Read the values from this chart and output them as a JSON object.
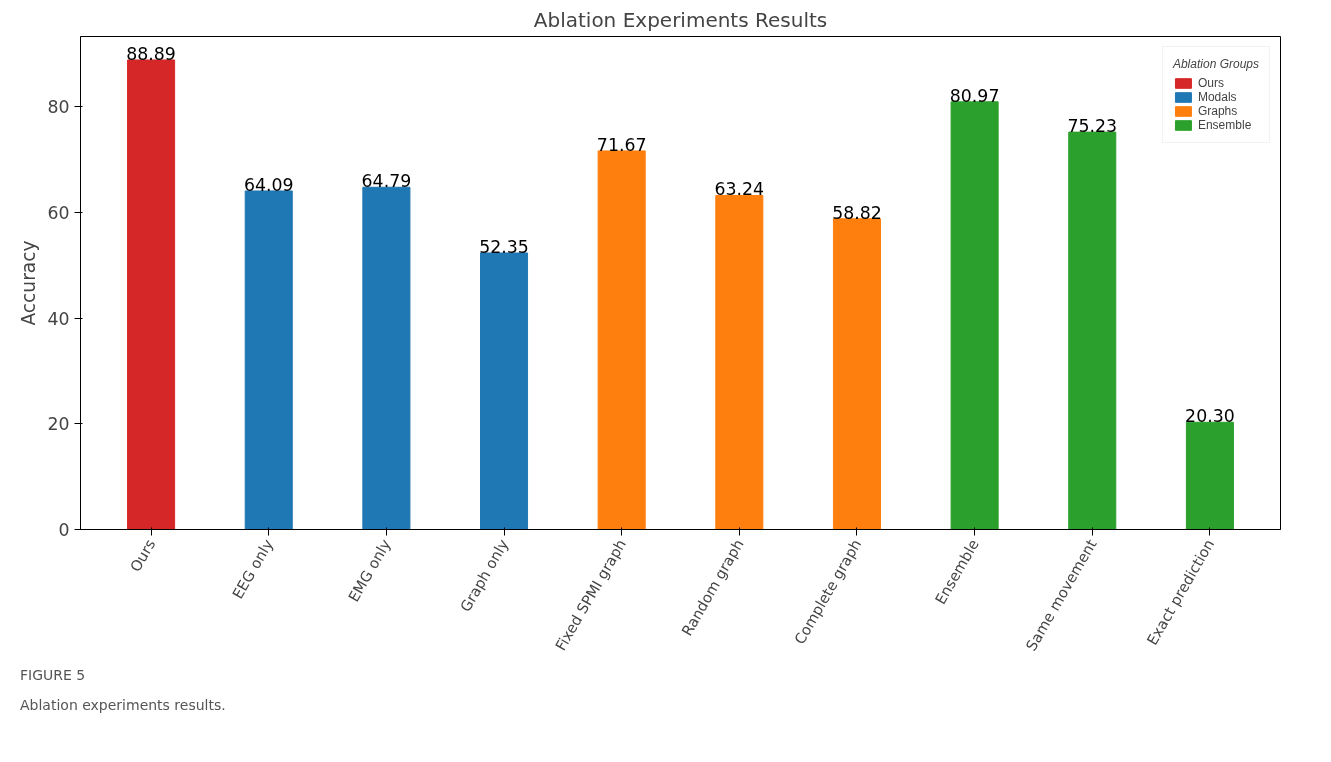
{
  "chart_data": {
    "type": "bar",
    "title": "Ablation Experiments Results",
    "ylabel": "Accuracy",
    "categories": [
      "Ours",
      "EEG only",
      "EMG only",
      "Graph only",
      "Fixed SPMI graph",
      "Random graph",
      "Complete graph",
      "Ensemble",
      "Same movement",
      "Exact prediction"
    ],
    "series": [
      {
        "name": "Ours",
        "color": "#d62728",
        "values": [
          88.89,
          null,
          null,
          null,
          null,
          null,
          null,
          null,
          null,
          null
        ],
        "value_labels": [
          "88.89",
          null,
          null,
          null,
          null,
          null,
          null,
          null,
          null,
          null
        ]
      },
      {
        "name": "Modals",
        "color": "#1f77b4",
        "values": [
          null,
          64.09,
          64.79,
          52.35,
          null,
          null,
          null,
          null,
          null,
          null
        ],
        "value_labels": [
          null,
          "64.09",
          "64.79",
          "52.35",
          null,
          null,
          null,
          null,
          null,
          null
        ]
      },
      {
        "name": "Graphs",
        "color": "#ff7f0e",
        "values": [
          null,
          null,
          null,
          null,
          71.67,
          63.24,
          58.82,
          null,
          null,
          null
        ],
        "value_labels": [
          null,
          null,
          null,
          null,
          "71.67",
          "63.24",
          "58.82",
          null,
          null,
          null
        ]
      },
      {
        "name": "Ensemble",
        "color": "#2ca02c",
        "values": [
          null,
          null,
          null,
          null,
          null,
          null,
          null,
          80.97,
          75.23,
          20.3
        ],
        "value_labels": [
          null,
          null,
          null,
          null,
          null,
          null,
          null,
          "80.97",
          "75.23",
          "20.30"
        ]
      }
    ],
    "ylim": [
      0,
      93.33
    ],
    "yticks": [
      0,
      20,
      40,
      60,
      80
    ],
    "grid": false,
    "legend": "top right",
    "legend_title": "Ablation Groups",
    "annotations": [
      "FIGURE 5",
      "Ablation experiments results."
    ]
  }
}
